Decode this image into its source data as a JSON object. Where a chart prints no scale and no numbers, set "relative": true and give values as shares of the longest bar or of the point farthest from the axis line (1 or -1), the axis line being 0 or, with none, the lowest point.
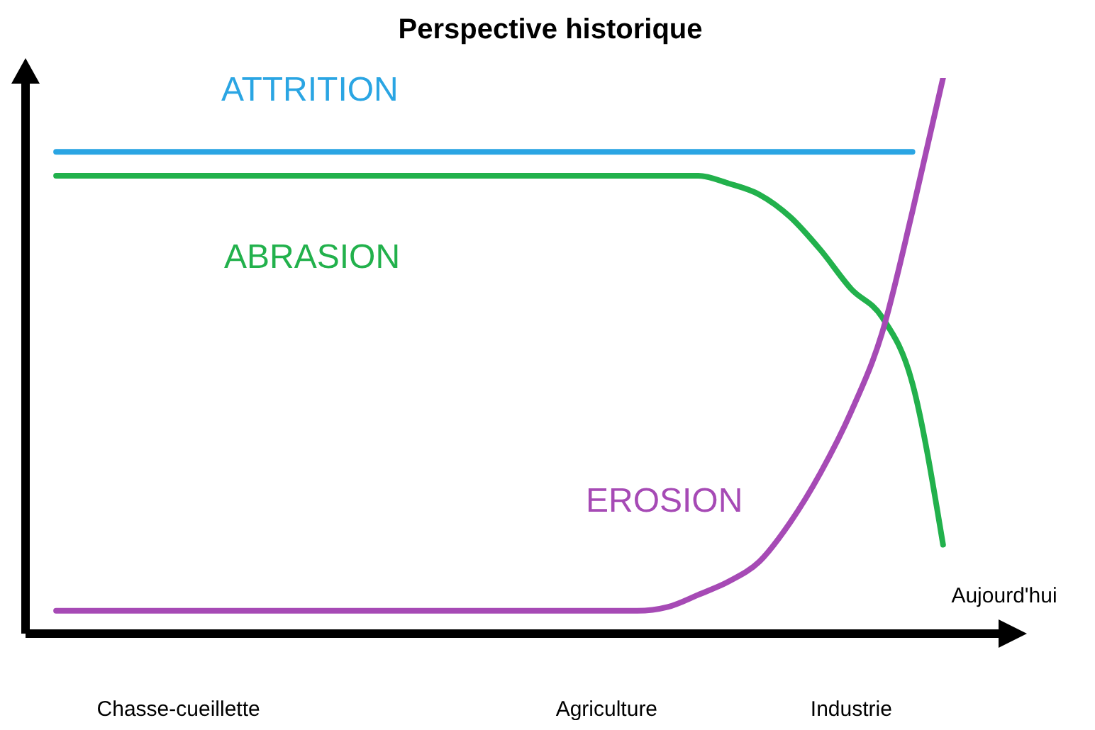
{
  "chart_data": {
    "type": "line",
    "title": "Perspective historique",
    "relative": true,
    "tick_labels": "x",
    "line_style": "solid",
    "categories": [
      null,
      null,
      null,
      null,
      null,
      "Chasse-cueillette",
      null,
      null,
      null,
      null,
      null,
      null,
      null,
      null,
      null,
      null,
      null,
      null,
      null,
      "Agriculture",
      null,
      null,
      null,
      null,
      null,
      null,
      null,
      "Industrie",
      null,
      null,
      null,
      null,
      "Aujourd'hui"
    ],
    "series": [
      {
        "name": "ATTRITION",
        "color": "#2aa5e3",
        "values": [
          null,
          0.867,
          0.867,
          0.867,
          0.867,
          0.867,
          0.867,
          0.867,
          0.867,
          0.867,
          0.867,
          0.867,
          0.867,
          0.867,
          0.867,
          0.867,
          0.867,
          0.867,
          0.867,
          0.867,
          0.867,
          0.867,
          0.867,
          0.867,
          0.867,
          0.867,
          0.867,
          0.867,
          0.867,
          0.867,
          null,
          null,
          null
        ]
      },
      {
        "name": "ABRASION",
        "color": "#22b14c",
        "values": [
          null,
          0.824,
          0.824,
          0.824,
          0.824,
          0.824,
          0.824,
          0.824,
          0.824,
          0.824,
          0.824,
          0.824,
          0.824,
          0.824,
          0.824,
          0.824,
          0.824,
          0.824,
          0.824,
          0.824,
          0.824,
          0.824,
          0.824,
          0.81,
          0.79,
          0.75,
          0.69,
          0.62,
          0.57,
          0.45,
          0.16,
          null,
          null
        ]
      },
      {
        "name": "EROSION",
        "color": "#a64ab5",
        "values": [
          null,
          0.041,
          0.041,
          0.041,
          0.041,
          0.041,
          0.041,
          0.041,
          0.041,
          0.041,
          0.041,
          0.041,
          0.041,
          0.041,
          0.041,
          0.041,
          0.041,
          0.041,
          0.041,
          0.041,
          0.041,
          0.048,
          0.07,
          0.094,
          0.13,
          0.2,
          0.29,
          0.4,
          0.54,
          0.76,
          1,
          null,
          null
        ]
      }
    ]
  }
}
